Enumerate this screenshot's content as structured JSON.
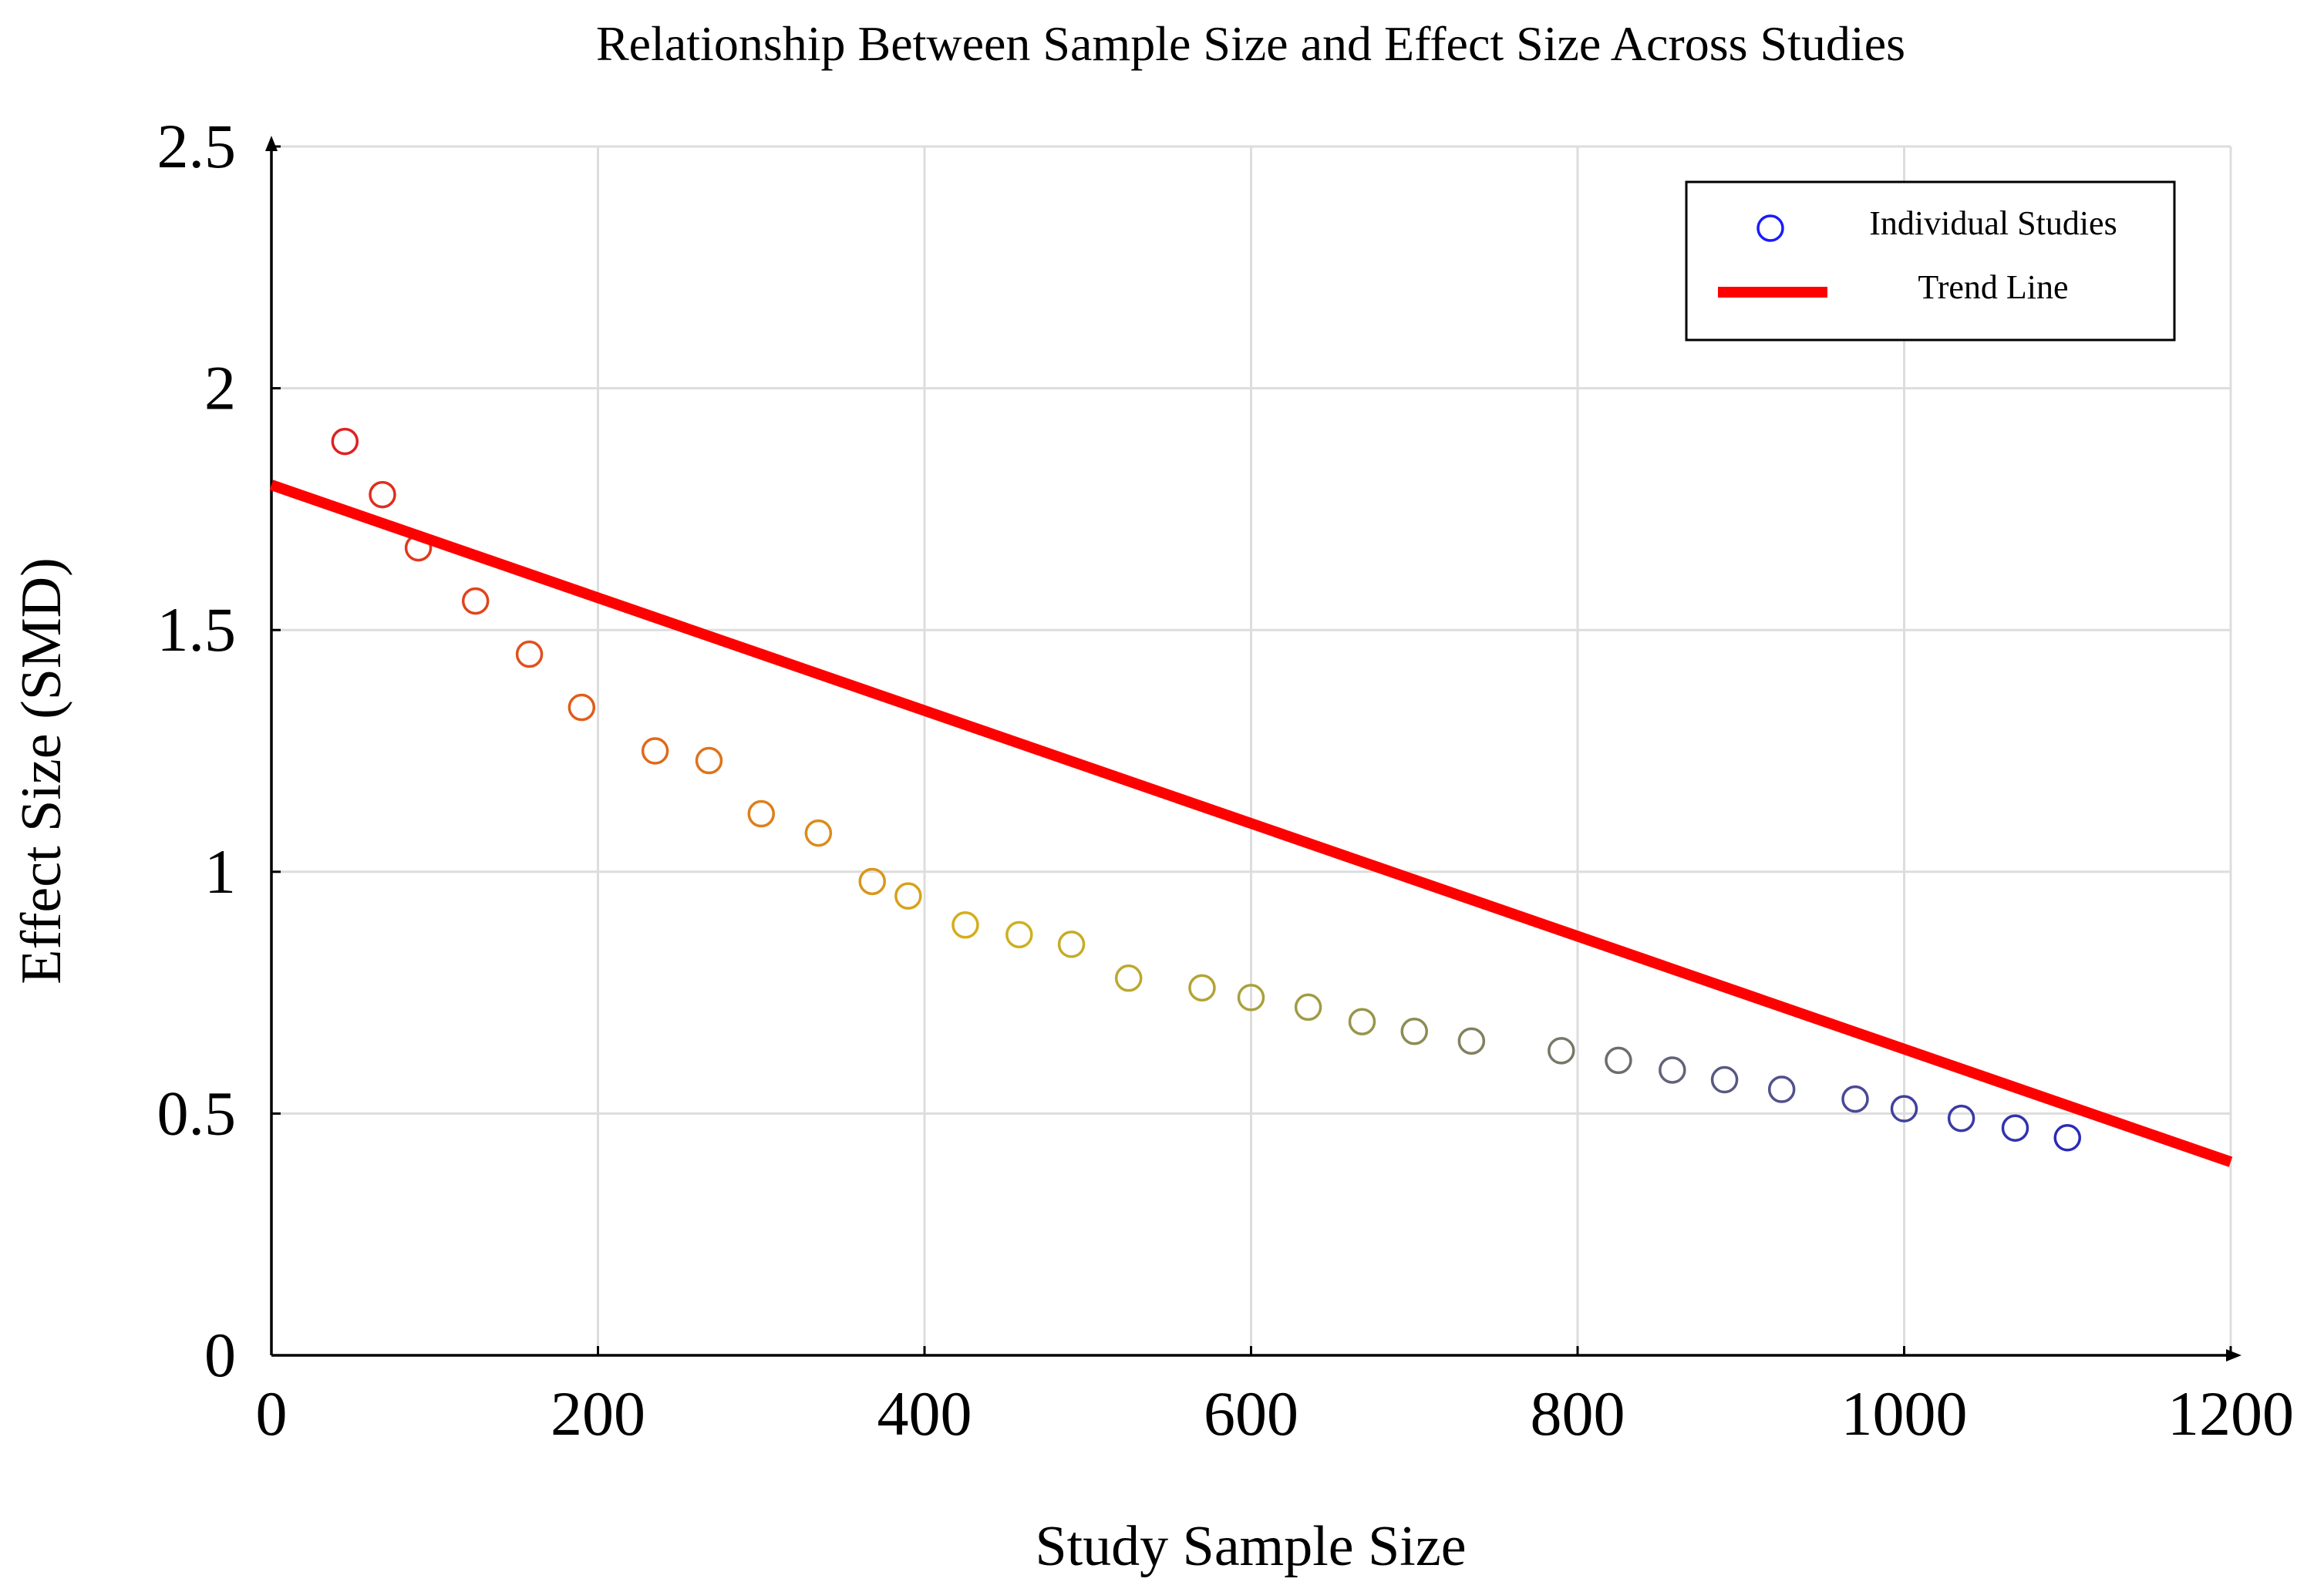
{
  "chart_data": {
    "type": "scatter",
    "title": "Relationship Between Sample Size and Effect Size Across Studies",
    "xlabel": "Study Sample Size",
    "ylabel": "Effect Size (SMD)",
    "xlim": [
      0,
      1200
    ],
    "ylim": [
      0,
      2.5
    ],
    "xticks": [
      0,
      200,
      400,
      600,
      800,
      1000,
      1200
    ],
    "yticks": [
      0,
      0.5,
      1,
      1.5,
      2,
      2.5
    ],
    "xtick_labels": [
      "0",
      "200",
      "400",
      "600",
      "800",
      "1000",
      "1200"
    ],
    "ytick_labels": [
      "0",
      "0.5",
      "1",
      "1.5",
      "2",
      "2.5"
    ],
    "grid": true,
    "legend_position": "top-right",
    "series": [
      {
        "name": "Individual Studies",
        "kind": "scatter",
        "marker": "open-circle",
        "legend_color": "#1a1aff",
        "color_gradient": [
          "#e02020",
          "#e06a1a",
          "#d4b21a",
          "#9a9a4a",
          "#5a5a80",
          "#2a2ab8"
        ],
        "x": [
          45,
          68,
          90,
          125,
          158,
          190,
          235,
          268,
          300,
          335,
          368,
          390,
          425,
          458,
          490,
          525,
          570,
          600,
          635,
          668,
          700,
          735,
          790,
          825,
          858,
          890,
          925,
          970,
          1000,
          1035,
          1068,
          1100
        ],
        "y": [
          1.89,
          1.78,
          1.67,
          1.56,
          1.45,
          1.34,
          1.25,
          1.23,
          1.12,
          1.08,
          0.98,
          0.95,
          0.89,
          0.87,
          0.85,
          0.78,
          0.76,
          0.74,
          0.72,
          0.69,
          0.67,
          0.65,
          0.63,
          0.61,
          0.59,
          0.57,
          0.55,
          0.53,
          0.51,
          0.49,
          0.47,
          0.45
        ]
      },
      {
        "name": "Trend Line",
        "kind": "line",
        "color": "#ff0000",
        "x": [
          0,
          1200
        ],
        "y": [
          1.8,
          0.4
        ]
      }
    ]
  }
}
